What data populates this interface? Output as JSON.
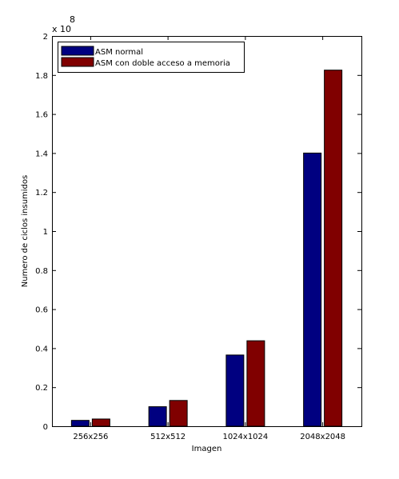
{
  "chart_data": {
    "type": "bar",
    "title": "",
    "xlabel": "Imagen",
    "ylabel": "Numero de ciclos insumidos",
    "y_multiplier_label": "x 10",
    "y_multiplier_exponent": "8",
    "categories": [
      "256x256",
      "512x512",
      "1024x1024",
      "2048x2048"
    ],
    "ylim": [
      0,
      2
    ],
    "yticks": [
      0,
      0.2,
      0.4,
      0.6,
      0.8,
      1,
      1.2,
      1.4,
      1.6,
      1.8,
      2
    ],
    "ytick_labels": [
      "0",
      "0.2",
      "0.4",
      "0.6",
      "0.8",
      "1",
      "1.2",
      "1.4",
      "1.6",
      "1.8",
      "2"
    ],
    "series": [
      {
        "name": "ASM normal",
        "color": "#000080",
        "values": [
          0.03,
          0.1,
          0.365,
          1.4
        ]
      },
      {
        "name": "ASM con doble acceso a memoria",
        "color": "#800000",
        "values": [
          0.037,
          0.132,
          0.438,
          1.825
        ]
      }
    ],
    "legend_position": "top-left",
    "grid": false
  }
}
